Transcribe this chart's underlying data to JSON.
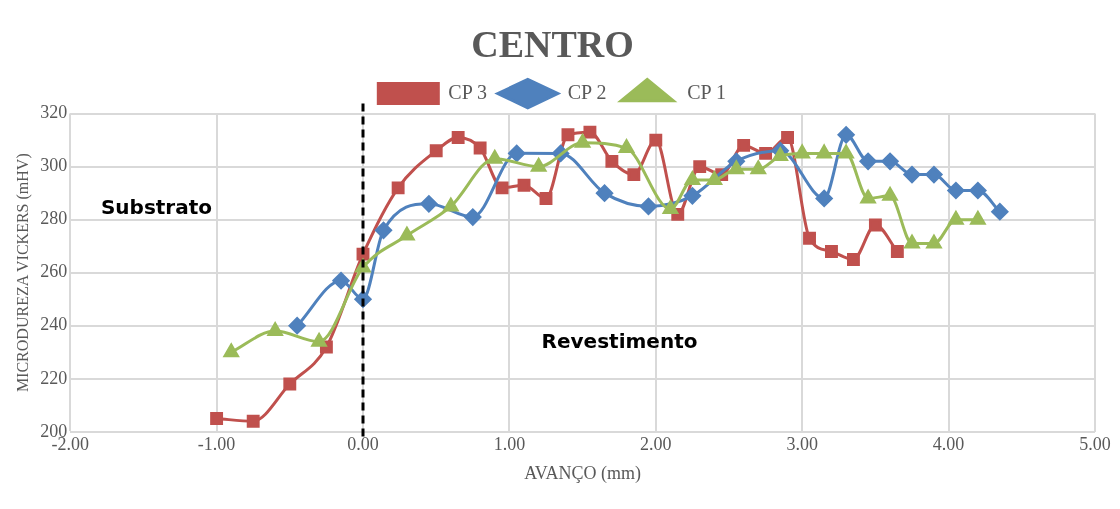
{
  "chart_data": {
    "type": "line",
    "title": "CENTRO",
    "xlabel": "AVANÇO (mm)",
    "ylabel": "MICRODUREZA VICKERS (mHV)",
    "annotations": [
      "Substrato",
      "Revestimento"
    ],
    "xlim": [
      -2,
      5
    ],
    "xticks": [
      {
        "value": -2,
        "label": "-2.00"
      },
      {
        "value": -1,
        "label": "-1.00"
      },
      {
        "value": 0,
        "label": "0.00"
      },
      {
        "value": 1,
        "label": "1.00"
      },
      {
        "value": 2,
        "label": "2.00"
      },
      {
        "value": 3,
        "label": "3.00"
      },
      {
        "value": 4,
        "label": "4.00"
      },
      {
        "value": 5,
        "label": "5.00"
      }
    ],
    "ylim": [
      200,
      320
    ],
    "yticks": [
      200,
      220,
      240,
      260,
      280,
      300,
      320
    ],
    "grid": true,
    "legend": "top",
    "ref_lines": [
      {
        "axis": "x",
        "value": 0,
        "label": null,
        "color": "#000000",
        "line_style": "dashed"
      }
    ],
    "series": [
      {
        "name": "CP 3",
        "color": "#c0504d",
        "marker": "square",
        "x": [
          -1.0,
          -0.75,
          -0.5,
          -0.25,
          0,
          0.24,
          0.5,
          0.65,
          0.8,
          0.95,
          1.1,
          1.25,
          1.4,
          1.55,
          1.7,
          1.85,
          2.0,
          2.15,
          2.3,
          2.45,
          2.6,
          2.75,
          2.9,
          3.05,
          3.2,
          3.35,
          3.5,
          3.65
        ],
        "values": [
          205,
          204,
          218,
          232,
          267,
          292,
          306,
          311,
          307,
          292,
          293,
          288,
          312,
          313,
          302,
          297,
          310,
          282,
          300,
          297,
          308,
          305,
          311,
          273,
          268,
          265,
          278,
          268
        ]
      },
      {
        "name": "CP 2",
        "color": "#4f81bd",
        "marker": "diamond",
        "x": [
          -0.45,
          -0.15,
          0,
          0.14,
          0.45,
          0.75,
          1.05,
          1.35,
          1.65,
          1.95,
          2.25,
          2.55,
          2.85,
          3.15,
          3.3,
          3.45,
          3.6,
          3.75,
          3.9,
          4.05,
          4.2,
          4.35
        ],
        "values": [
          240,
          257,
          250,
          276,
          286,
          281,
          305,
          305,
          290,
          285,
          289,
          302,
          306,
          288,
          312,
          302,
          302,
          297,
          297,
          291,
          291,
          283
        ]
      },
      {
        "name": "CP 1",
        "color": "#9bbb59",
        "marker": "triangle",
        "x": [
          -0.9,
          -0.6,
          -0.3,
          0,
          0.3,
          0.6,
          0.9,
          1.2,
          1.5,
          1.8,
          2.1,
          2.25,
          2.4,
          2.55,
          2.7,
          2.85,
          3.0,
          3.15,
          3.3,
          3.45,
          3.6,
          3.75,
          3.9,
          4.05,
          4.2
        ],
        "values": [
          230,
          238,
          234,
          262,
          274,
          285,
          303,
          300,
          309,
          307,
          284,
          295,
          295,
          299,
          299,
          304,
          305,
          305,
          305,
          288,
          289,
          271,
          271,
          280,
          280
        ]
      }
    ]
  }
}
